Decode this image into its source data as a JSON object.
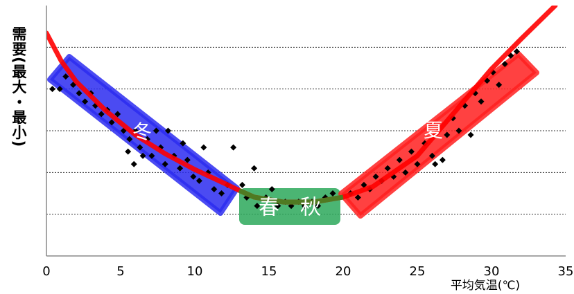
{
  "chart_data": {
    "type": "scatter",
    "y_label": "需要(最大・最小)",
    "x_label": "平均気温(℃)",
    "xlim": [
      0,
      35
    ],
    "xticks": [
      0,
      5,
      10,
      15,
      20,
      25,
      30,
      35
    ],
    "ylim": [
      0,
      6
    ],
    "yticks": [
      1,
      2,
      3,
      4,
      5
    ],
    "grid": true,
    "regions": [
      {
        "label": "冬",
        "color": "#2b2bf0"
      },
      {
        "label": "春　秋",
        "color": "#2ca85a"
      },
      {
        "label": "夏",
        "color": "#ff2020"
      }
    ],
    "curve": {
      "color": "#ff0000",
      "middle_color": "#4f7a22",
      "middle_range": [
        13,
        20
      ],
      "x": [
        0,
        1,
        2,
        4,
        6,
        8,
        10,
        12,
        13,
        14,
        16,
        18,
        20,
        22,
        25,
        28,
        30,
        32,
        34.3
      ],
      "y": [
        5.34,
        4.67,
        4.18,
        3.48,
        2.9,
        2.45,
        2.07,
        1.74,
        1.57,
        1.41,
        1.29,
        1.29,
        1.41,
        1.66,
        2.4,
        3.65,
        4.48,
        5.2,
        6.0
      ]
    },
    "series": [
      {
        "color": "#000000",
        "x": [
          0.4,
          0.9,
          1.3,
          1.8,
          2.2,
          2.6,
          3.0,
          3.3,
          3.7,
          4.1,
          4.4,
          4.8,
          5.2,
          5.6,
          6.0,
          6.3,
          5.5,
          5.9,
          6.5,
          6.8,
          7.1,
          7.4,
          7.7,
          8.0,
          8.2,
          8.6,
          9.0,
          9.2,
          9.5,
          9.9,
          10.3,
          10.6,
          10.9,
          11.3,
          11.8,
          12.2,
          12.6,
          13.2,
          13.5,
          14.0,
          14.2,
          14.8,
          15.2,
          15.6,
          16.1,
          16.5,
          17.0,
          17.4,
          17.9,
          18.3,
          18.8,
          19.3,
          20.5,
          21.0,
          21.4,
          21.8,
          22.2,
          22.6,
          23.0,
          23.4,
          23.8,
          24.2,
          24.6,
          25.0,
          25.5,
          26.0,
          26.2,
          26.7,
          27.0,
          27.4,
          27.8,
          28.2,
          28.6,
          28.9,
          29.3,
          29.7,
          30.1,
          30.5,
          30.9,
          31.3,
          31.7
        ],
        "values": [
          4.0,
          4.0,
          4.3,
          4.1,
          3.9,
          3.7,
          3.9,
          3.6,
          3.4,
          3.5,
          3.2,
          3.4,
          3.0,
          2.8,
          3.0,
          2.6,
          2.5,
          2.2,
          2.4,
          2.8,
          2.4,
          3.0,
          2.6,
          2.2,
          3.0,
          2.4,
          2.1,
          2.7,
          2.3,
          1.9,
          1.8,
          2.6,
          2.0,
          1.6,
          1.5,
          1.7,
          2.6,
          1.7,
          1.4,
          2.1,
          1.2,
          1.4,
          1.6,
          1.2,
          1.3,
          1.2,
          1.3,
          1.2,
          1.3,
          1.2,
          1.4,
          1.5,
          1.5,
          1.4,
          1.7,
          1.6,
          1.9,
          1.8,
          2.1,
          1.9,
          2.3,
          2.0,
          2.5,
          2.2,
          2.7,
          2.4,
          2.2,
          2.3,
          2.9,
          3.3,
          3.0,
          3.6,
          2.9,
          3.9,
          3.7,
          4.2,
          4.4,
          4.1,
          4.6,
          4.8,
          4.9
        ]
      }
    ]
  }
}
